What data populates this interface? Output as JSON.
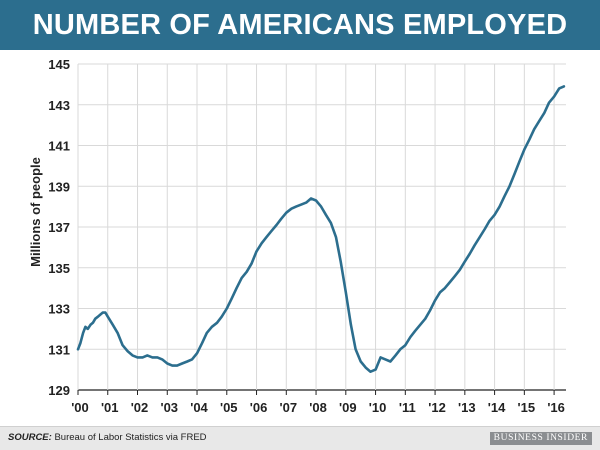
{
  "header": {
    "title": "NUMBER OF AMERICANS EMPLOYED"
  },
  "footer": {
    "source_prefix": "SOURCE:",
    "source_text": " Bureau of Labor Statistics via FRED",
    "brand": "BUSINESS INSIDER"
  },
  "colors": {
    "title_bar": "#2c6e8e",
    "line": "#2c6e8e",
    "grid": "#d9d9d9",
    "footer_bg": "#e8e8e8",
    "brand_bg": "#8b8e91"
  },
  "chart_data": {
    "type": "line",
    "title": "NUMBER OF AMERICANS EMPLOYED",
    "ylabel": "Millions of people",
    "xlabel": "",
    "ylim": [
      129,
      145
    ],
    "xlim": [
      2000,
      2016.4
    ],
    "yticks": [
      129,
      131,
      133,
      135,
      137,
      139,
      141,
      143,
      145
    ],
    "xtick_values": [
      2000,
      2001,
      2002,
      2003,
      2004,
      2005,
      2006,
      2007,
      2008,
      2009,
      2010,
      2011,
      2012,
      2013,
      2014,
      2015,
      2016
    ],
    "xtick_labels": [
      "'00",
      "'01",
      "'02",
      "'03",
      "'04",
      "'05",
      "'06",
      "'07",
      "'08",
      "'09",
      "'10",
      "'11",
      "'12",
      "'13",
      "'14",
      "'15",
      "'16"
    ],
    "grid": true,
    "series": [
      {
        "x": [
          2000.0,
          2000.08,
          2000.17,
          2000.25,
          2000.33,
          2000.42,
          2000.5,
          2000.58,
          2000.67,
          2000.75,
          2000.83,
          2000.92,
          2001.0,
          2001.17,
          2001.33,
          2001.5,
          2001.67,
          2001.83,
          2002.0,
          2002.17,
          2002.33,
          2002.5,
          2002.67,
          2002.83,
          2003.0,
          2003.17,
          2003.33,
          2003.5,
          2003.67,
          2003.83,
          2004.0,
          2004.17,
          2004.33,
          2004.5,
          2004.67,
          2004.83,
          2005.0,
          2005.17,
          2005.33,
          2005.5,
          2005.67,
          2005.83,
          2006.0,
          2006.17,
          2006.33,
          2006.5,
          2006.67,
          2006.83,
          2007.0,
          2007.17,
          2007.33,
          2007.5,
          2007.67,
          2007.83,
          2008.0,
          2008.17,
          2008.33,
          2008.5,
          2008.67,
          2008.83,
          2009.0,
          2009.17,
          2009.33,
          2009.5,
          2009.67,
          2009.83,
          2010.0,
          2010.17,
          2010.33,
          2010.5,
          2010.67,
          2010.83,
          2011.0,
          2011.17,
          2011.33,
          2011.5,
          2011.67,
          2011.83,
          2012.0,
          2012.17,
          2012.33,
          2012.5,
          2012.67,
          2012.83,
          2013.0,
          2013.17,
          2013.33,
          2013.5,
          2013.67,
          2013.83,
          2014.0,
          2014.17,
          2014.33,
          2014.5,
          2014.67,
          2014.83,
          2015.0,
          2015.17,
          2015.33,
          2015.5,
          2015.67,
          2015.83,
          2016.0,
          2016.17,
          2016.33
        ],
        "y": [
          131.0,
          131.3,
          131.8,
          132.1,
          132.0,
          132.2,
          132.3,
          132.5,
          132.6,
          132.7,
          132.8,
          132.8,
          132.6,
          132.2,
          131.8,
          131.2,
          130.9,
          130.7,
          130.6,
          130.6,
          130.7,
          130.6,
          130.6,
          130.5,
          130.3,
          130.2,
          130.2,
          130.3,
          130.4,
          130.5,
          130.8,
          131.3,
          131.8,
          132.1,
          132.3,
          132.6,
          133.0,
          133.5,
          134.0,
          134.5,
          134.8,
          135.2,
          135.8,
          136.2,
          136.5,
          136.8,
          137.1,
          137.4,
          137.7,
          137.9,
          138.0,
          138.1,
          138.2,
          138.4,
          138.3,
          138.0,
          137.6,
          137.2,
          136.5,
          135.3,
          133.8,
          132.2,
          131.0,
          130.4,
          130.1,
          129.9,
          130.0,
          130.6,
          130.5,
          130.4,
          130.7,
          131.0,
          131.2,
          131.6,
          131.9,
          132.2,
          132.5,
          132.9,
          133.4,
          133.8,
          134.0,
          134.3,
          134.6,
          134.9,
          135.3,
          135.7,
          136.1,
          136.5,
          136.9,
          137.3,
          137.6,
          138.0,
          138.5,
          139.0,
          139.6,
          140.2,
          140.8,
          141.3,
          141.8,
          142.2,
          142.6,
          143.1,
          143.4,
          143.8,
          143.9
        ]
      }
    ]
  }
}
